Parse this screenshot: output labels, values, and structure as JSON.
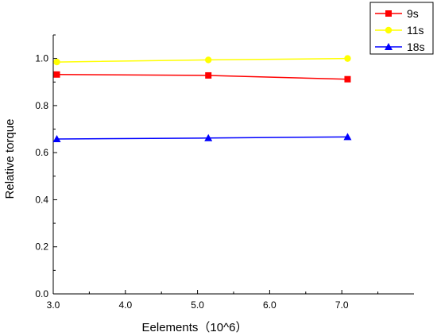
{
  "chart_data": {
    "type": "line",
    "title": "",
    "xlabel": "Eelements（10^6）",
    "ylabel": "Relative torque",
    "xlim": [
      3.0,
      8.0
    ],
    "ylim": [
      0.0,
      1.1
    ],
    "x_ticks": [
      "3.0",
      "4.0",
      "5.0",
      "6.0",
      "7.0"
    ],
    "y_ticks": [
      "0.0",
      "0.2",
      "0.4",
      "0.6",
      "0.8",
      "1.0"
    ],
    "grid": false,
    "legend_position": "top-right outside",
    "series": [
      {
        "name": "9s",
        "color": "#ff0000",
        "marker": "square",
        "x": [
          3.05,
          5.15,
          7.08
        ],
        "y": [
          0.932,
          0.928,
          0.912
        ]
      },
      {
        "name": "11s",
        "color": "#ffff00",
        "marker": "circle",
        "x": [
          3.05,
          5.15,
          7.08
        ],
        "y": [
          0.985,
          0.994,
          1.0
        ]
      },
      {
        "name": "18s",
        "color": "#0000ff",
        "marker": "triangle",
        "x": [
          3.05,
          5.15,
          7.08
        ],
        "y": [
          0.658,
          0.662,
          0.667
        ]
      }
    ]
  }
}
